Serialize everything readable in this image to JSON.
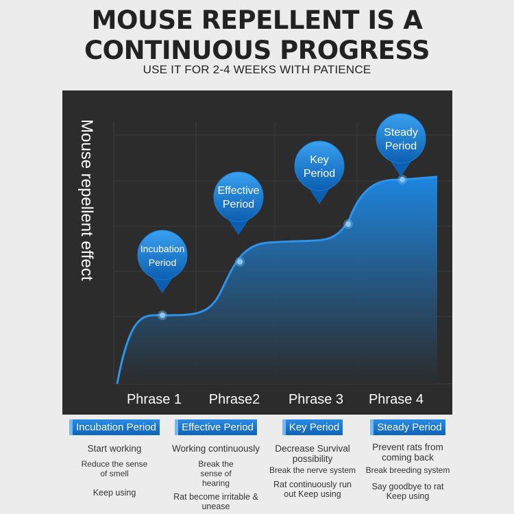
{
  "header": {
    "title_line1": "MOUSE REPELLENT IS A",
    "title_line2": "CONTINUOUS PROGRESS",
    "subtitle": "USE IT FOR 2-4 WEEKS WITH PATIENCE"
  },
  "chart_data": {
    "type": "area",
    "ylabel": "Mouse repellent effect",
    "categories": [
      "Phrase 1",
      "Phrase2",
      "Phrase 3",
      "Phrase 4"
    ],
    "markers": [
      {
        "label_lines": [
          "Incubation",
          "Period"
        ]
      },
      {
        "label_lines": [
          "Effective",
          "Period"
        ]
      },
      {
        "label_lines": [
          "Key",
          "Period"
        ]
      },
      {
        "label_lines": [
          "Steady",
          "Period"
        ]
      }
    ],
    "colors": {
      "background": "#2c2c2c",
      "area_top": "#1e86e0",
      "area_bottom": "#2c2c2c",
      "marker": "#1a7fd6",
      "point": "#6cb4ee"
    },
    "grid": true
  },
  "phases": [
    {
      "title": "Incubation Period",
      "line1": "Start working",
      "line2": "Reduce the sense of smell",
      "line3": "Keep using"
    },
    {
      "title": "Effective Period",
      "line1": "Working continuously",
      "line2": "Break the sense of hearing",
      "line3": "Rat become irritable & unease"
    },
    {
      "title": "Key Period",
      "line1": "Decrease Survival possibility",
      "line2": "Break the nerve system",
      "line3": "Rat continuously run out Keep using"
    },
    {
      "title": "Steady Period",
      "line1": "Prevent rats from coming back",
      "line2": "Break breeding system",
      "line3": "Say goodbye to rat Keep using"
    }
  ]
}
